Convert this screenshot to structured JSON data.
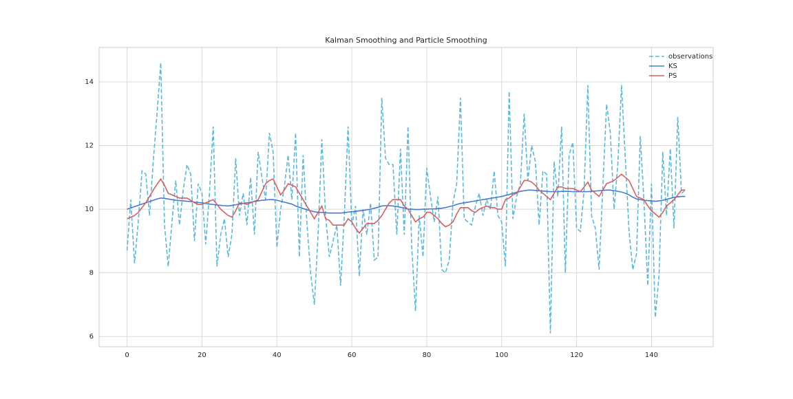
{
  "chart_data": {
    "type": "line",
    "title": "Kalman Smoothing and Particle Smoothing",
    "x": [
      0,
      1,
      2,
      3,
      4,
      5,
      6,
      7,
      8,
      9,
      10,
      11,
      12,
      13,
      14,
      15,
      16,
      17,
      18,
      19,
      20,
      21,
      22,
      23,
      24,
      25,
      26,
      27,
      28,
      29,
      30,
      31,
      32,
      33,
      34,
      35,
      36,
      37,
      38,
      39,
      40,
      41,
      42,
      43,
      44,
      45,
      46,
      47,
      48,
      49,
      50,
      51,
      52,
      53,
      54,
      55,
      56,
      57,
      58,
      59,
      60,
      61,
      62,
      63,
      64,
      65,
      66,
      67,
      68,
      69,
      70,
      71,
      72,
      73,
      74,
      75,
      76,
      77,
      78,
      79,
      80,
      81,
      82,
      83,
      84,
      85,
      86,
      87,
      88,
      89,
      90,
      91,
      92,
      93,
      94,
      95,
      96,
      97,
      98,
      99,
      100,
      101,
      102,
      103,
      104,
      105,
      106,
      107,
      108,
      109,
      110,
      111,
      112,
      113,
      114,
      115,
      116,
      117,
      118,
      119,
      120,
      121,
      122,
      123,
      124,
      125,
      126,
      127,
      128,
      129,
      130,
      131,
      132,
      133,
      134,
      135,
      136,
      137,
      138,
      139,
      140,
      141,
      142,
      143,
      144,
      145,
      146,
      147,
      148,
      149
    ],
    "series": [
      {
        "name": "observations",
        "color": "#5bb8d9",
        "linestyle": "dashed",
        "values": [
          8.7,
          10.3,
          8.3,
          9.6,
          11.2,
          11.1,
          9.8,
          11.5,
          13.0,
          14.6,
          9.5,
          8.2,
          9.6,
          10.9,
          9.5,
          10.6,
          11.4,
          11.1,
          9.0,
          10.8,
          10.5,
          8.9,
          10.5,
          12.6,
          8.2,
          9.2,
          9.7,
          8.5,
          9.2,
          11.6,
          9.8,
          10.5,
          9.5,
          11.0,
          9.2,
          11.8,
          11.0,
          10.3,
          12.4,
          11.8,
          8.8,
          10.0,
          10.7,
          11.7,
          10.3,
          12.4,
          8.5,
          11.7,
          9.6,
          8.0,
          7.0,
          9.2,
          12.2,
          9.8,
          8.5,
          9.0,
          9.5,
          7.6,
          9.8,
          12.6,
          9.5,
          10.1,
          7.9,
          10.0,
          9.2,
          10.2,
          8.4,
          8.5,
          13.5,
          11.6,
          11.4,
          11.4,
          9.2,
          11.9,
          9.2,
          12.6,
          8.8,
          6.8,
          9.8,
          8.5,
          11.3,
          10.4,
          9.6,
          10.4,
          8.1,
          8.0,
          8.4,
          10.2,
          10.8,
          13.5,
          9.7,
          9.6,
          9.5,
          10.1,
          10.5,
          9.8,
          10.3,
          10.0,
          11.2,
          9.8,
          9.6,
          8.2,
          13.7,
          9.7,
          10.4,
          10.8,
          13.0,
          10.9,
          12.0,
          11.5,
          9.5,
          11.2,
          11.1,
          6.1,
          11.5,
          10.4,
          12.6,
          8.0,
          11.7,
          12.1,
          9.4,
          9.3,
          10.6,
          13.9,
          9.8,
          9.4,
          8.1,
          10.7,
          13.3,
          12.4,
          10.0,
          11.4,
          13.9,
          11.6,
          9.3,
          8.1,
          8.6,
          12.3,
          10.2,
          7.6,
          10.8,
          6.6,
          7.9,
          11.8,
          9.8,
          11.9,
          9.4,
          12.9,
          10.5,
          10.6
        ]
      },
      {
        "name": "KS",
        "color": "#4878cf",
        "linestyle": "solid",
        "values": [
          10.0,
          10.04,
          10.08,
          10.12,
          10.16,
          10.2,
          10.24,
          10.28,
          10.32,
          10.35,
          10.34,
          10.32,
          10.3,
          10.28,
          10.27,
          10.26,
          10.25,
          10.24,
          10.22,
          10.21,
          10.2,
          10.18,
          10.16,
          10.15,
          10.13,
          10.12,
          10.11,
          10.1,
          10.12,
          10.14,
          10.16,
          10.18,
          10.2,
          10.22,
          10.24,
          10.26,
          10.28,
          10.29,
          10.3,
          10.3,
          10.28,
          10.25,
          10.22,
          10.19,
          10.16,
          10.1,
          10.06,
          10.02,
          9.98,
          9.95,
          9.92,
          9.9,
          9.9,
          9.89,
          9.88,
          9.88,
          9.88,
          9.88,
          9.89,
          9.91,
          9.92,
          9.93,
          9.95,
          9.96,
          9.98,
          10.0,
          10.03,
          10.06,
          10.1,
          10.11,
          10.11,
          10.1,
          10.08,
          10.06,
          10.04,
          10.0,
          10.0,
          9.99,
          9.99,
          10.0,
          10.0,
          10.01,
          10.01,
          10.02,
          10.03,
          10.05,
          10.08,
          10.11,
          10.15,
          10.18,
          10.2,
          10.22,
          10.24,
          10.26,
          10.28,
          10.3,
          10.32,
          10.34,
          10.36,
          10.38,
          10.4,
          10.43,
          10.46,
          10.5,
          10.53,
          10.56,
          10.58,
          10.6,
          10.6,
          10.59,
          10.58,
          10.57,
          10.56,
          10.55,
          10.55,
          10.55,
          10.56,
          10.56,
          10.56,
          10.55,
          10.55,
          10.55,
          10.55,
          10.55,
          10.56,
          10.57,
          10.58,
          10.59,
          10.6,
          10.6,
          10.58,
          10.56,
          10.54,
          10.5,
          10.45,
          10.38,
          10.32,
          10.3,
          10.28,
          10.27,
          10.26,
          10.25,
          10.26,
          10.28,
          10.31,
          10.34,
          10.37,
          10.39,
          10.4,
          10.4
        ]
      },
      {
        "name": "PS",
        "color": "#d65f5f",
        "linestyle": "solid",
        "values": [
          9.7,
          9.75,
          9.8,
          9.9,
          10.05,
          10.2,
          10.4,
          10.6,
          10.78,
          10.95,
          10.75,
          10.5,
          10.45,
          10.4,
          10.35,
          10.35,
          10.35,
          10.28,
          10.2,
          10.15,
          10.15,
          10.2,
          10.25,
          10.3,
          10.15,
          10.0,
          9.9,
          9.8,
          9.75,
          9.95,
          10.2,
          10.18,
          10.15,
          10.2,
          10.25,
          10.3,
          10.55,
          10.8,
          10.9,
          10.95,
          10.7,
          10.45,
          10.6,
          10.8,
          10.75,
          10.7,
          10.5,
          10.3,
          10.1,
          9.9,
          9.7,
          9.9,
          10.1,
          9.7,
          9.65,
          9.5,
          9.5,
          9.5,
          9.5,
          9.7,
          9.6,
          9.4,
          9.25,
          9.4,
          9.55,
          9.55,
          9.55,
          9.65,
          9.8,
          10.0,
          10.2,
          10.3,
          10.3,
          10.3,
          10.1,
          10.0,
          9.8,
          9.6,
          9.7,
          9.75,
          9.9,
          9.9,
          9.8,
          9.7,
          9.55,
          9.45,
          9.5,
          9.6,
          9.85,
          10.05,
          10.05,
          10.05,
          9.95,
          9.9,
          10.0,
          10.05,
          10.1,
          10.05,
          10.05,
          10.0,
          10.0,
          10.3,
          10.35,
          10.45,
          10.5,
          10.7,
          10.9,
          10.9,
          10.85,
          10.75,
          10.6,
          10.5,
          10.4,
          10.3,
          10.5,
          10.7,
          10.7,
          10.65,
          10.65,
          10.65,
          10.6,
          10.55,
          10.7,
          10.85,
          10.6,
          10.5,
          10.4,
          10.6,
          10.8,
          10.85,
          10.9,
          11.0,
          11.1,
          11.0,
          10.9,
          10.65,
          10.4,
          10.35,
          10.3,
          10.1,
          9.95,
          9.85,
          9.75,
          9.9,
          10.1,
          10.2,
          10.3,
          10.45,
          10.6,
          10.6
        ]
      }
    ],
    "xlim": [
      -7.45,
      156.45
    ],
    "xticks": [
      0,
      20,
      40,
      60,
      80,
      100,
      120,
      140
    ],
    "ylim": [
      5.68,
      15.08
    ],
    "yticks": [
      6,
      8,
      10,
      12,
      14
    ],
    "grid": true,
    "legend": "upper right"
  }
}
